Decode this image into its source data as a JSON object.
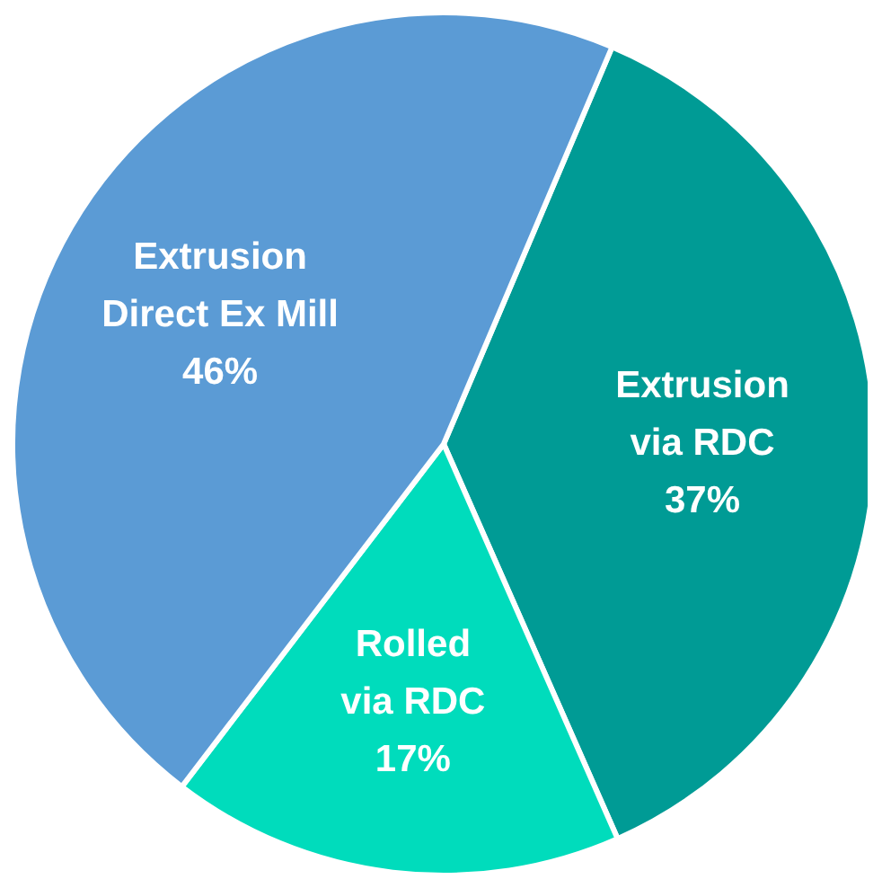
{
  "chart_data": {
    "type": "pie",
    "categories": [
      "Extrusion\nvia RDC",
      "Rolled\nvia RDC",
      "Extrusion\nDirect Ex Mill"
    ],
    "values": [
      37,
      17,
      46
    ],
    "colors": [
      "#009b95",
      "#00dcbc",
      "#5b9bd5"
    ],
    "value_labels": [
      "37%",
      "17%",
      "46%"
    ]
  }
}
